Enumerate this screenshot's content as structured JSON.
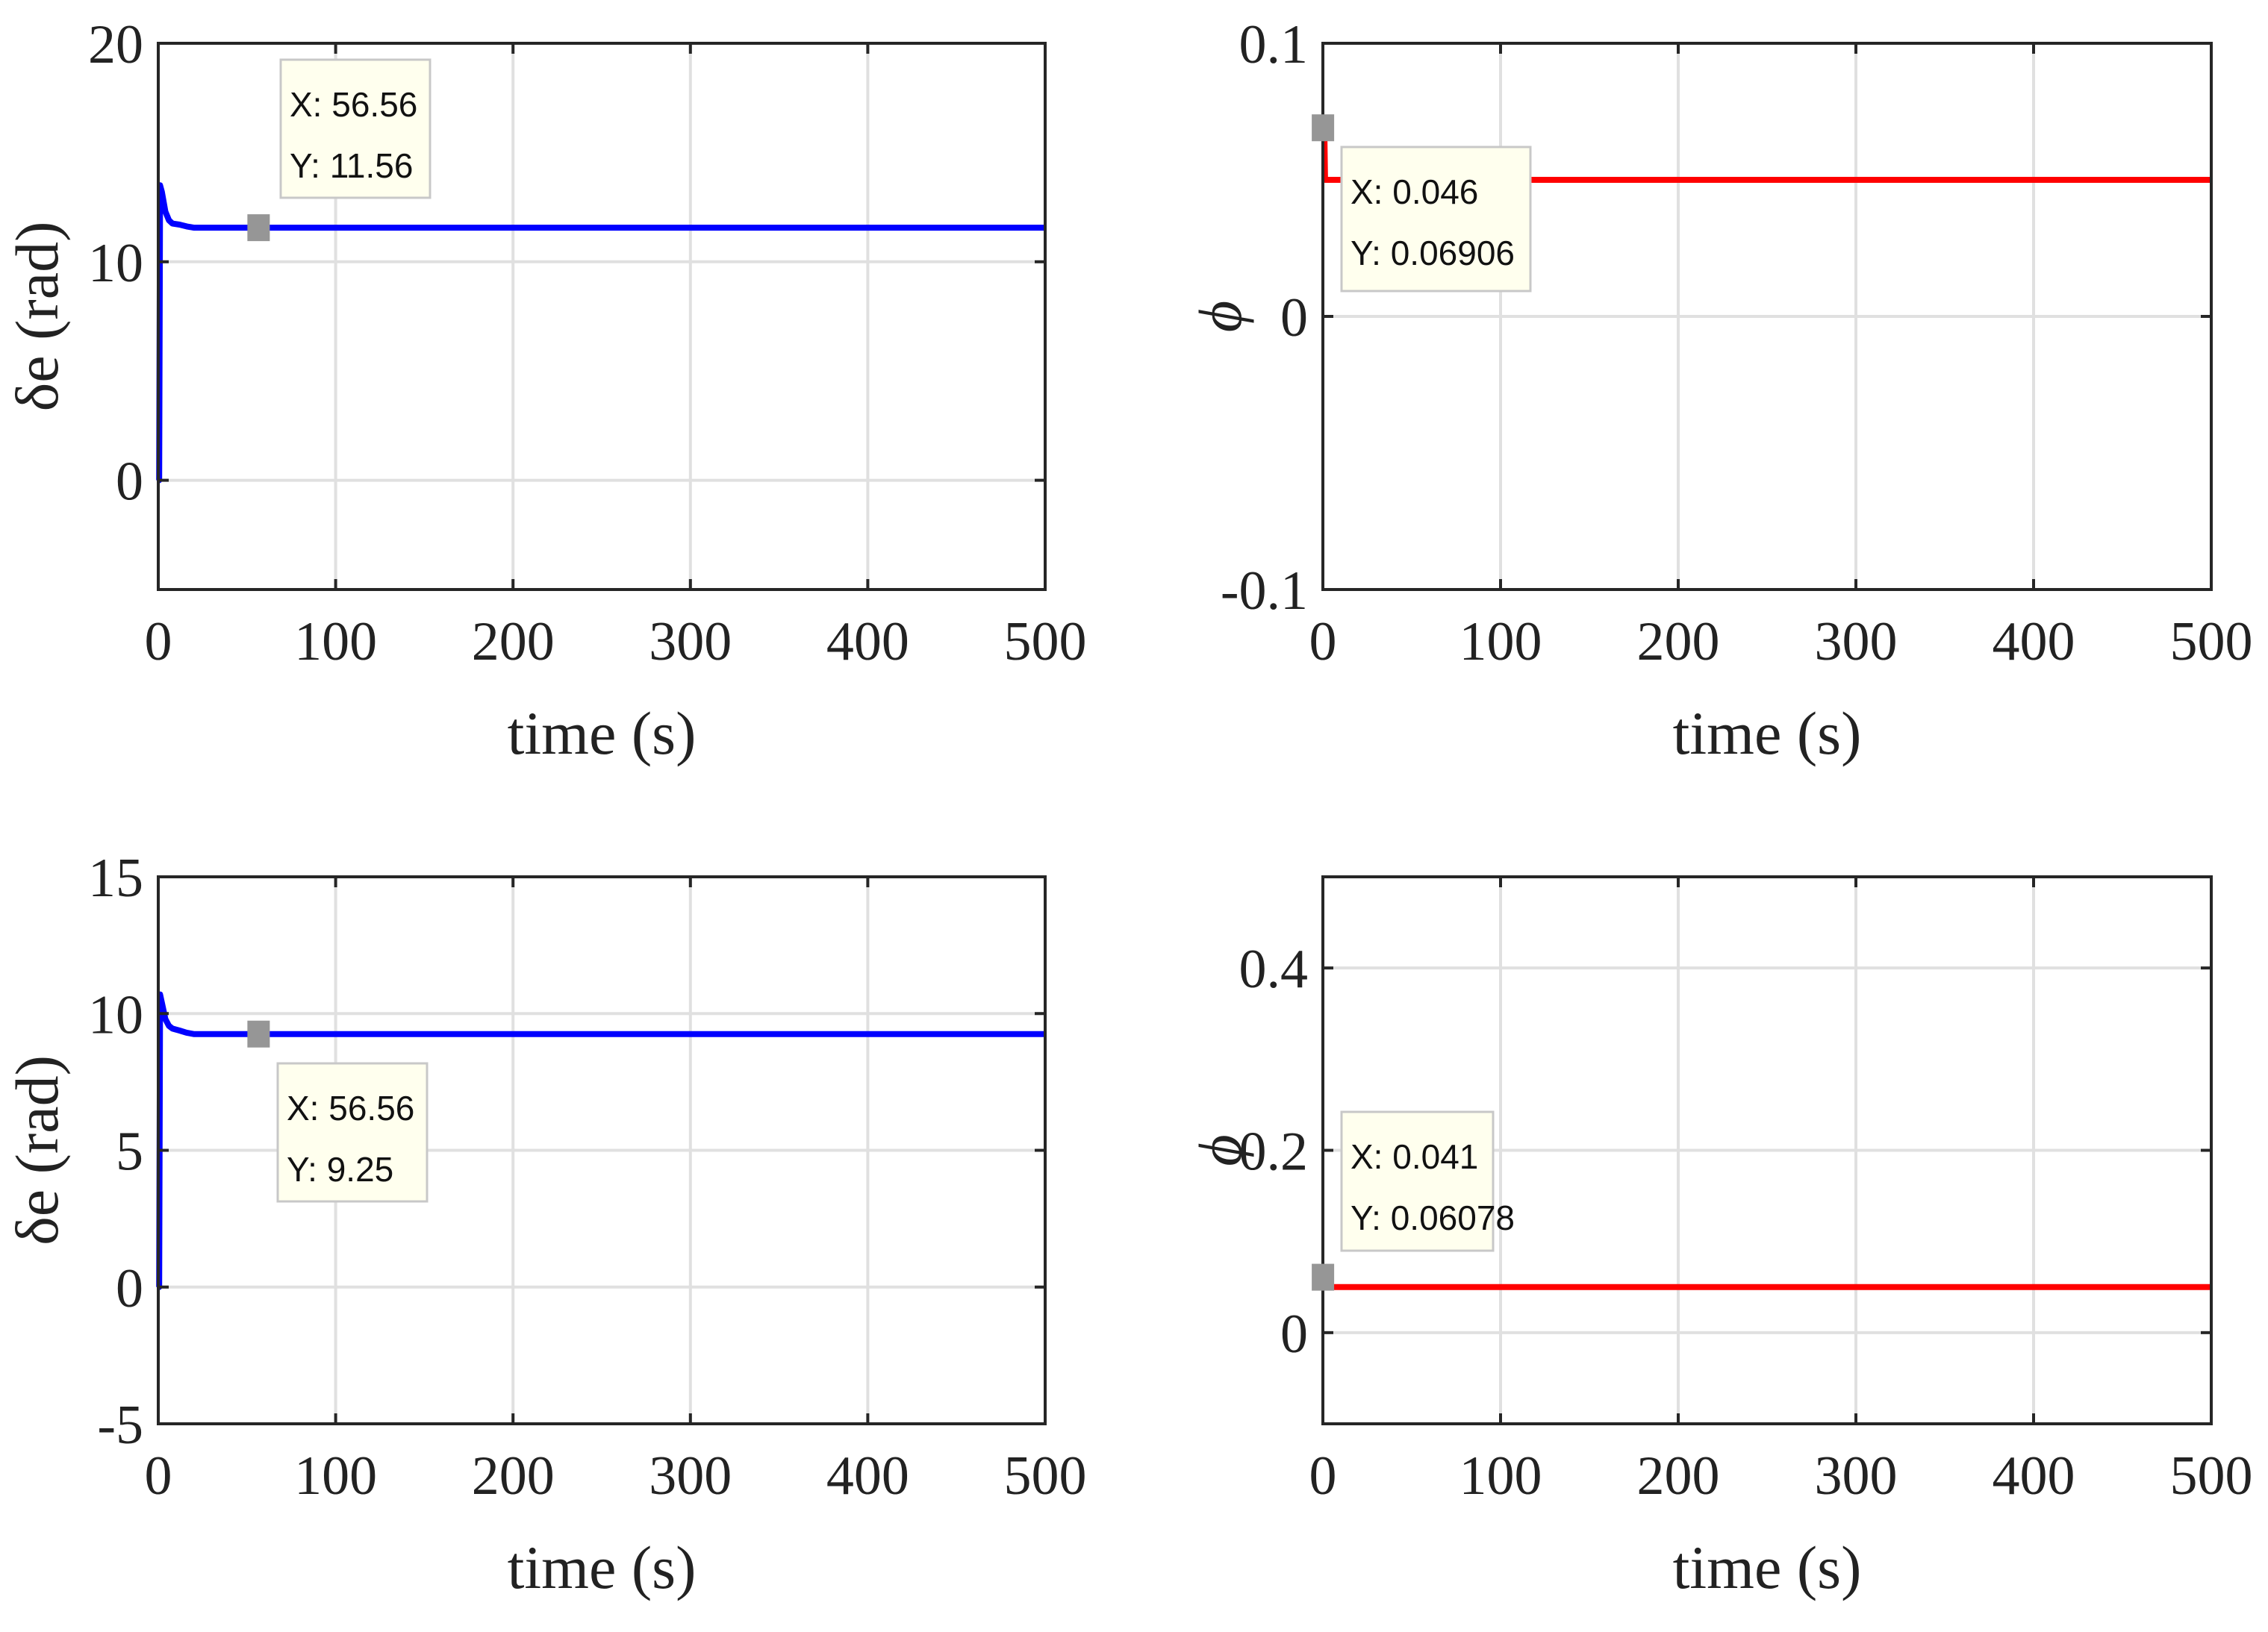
{
  "chart_data": [
    {
      "type": "line",
      "xlabel": "time (s)",
      "ylabel": "δe (rad)",
      "xlim": [
        0,
        500
      ],
      "ylim": [
        -5,
        20
      ],
      "xticks": [
        0,
        100,
        200,
        300,
        400,
        500
      ],
      "yticks": [
        0,
        10,
        20
      ],
      "grid": true,
      "series": [
        {
          "name": "δe",
          "color": "#0000ff",
          "points": [
            [
              0,
              0
            ],
            [
              0.5,
              0
            ],
            [
              1,
              13.5
            ],
            [
              2,
              13.2
            ],
            [
              4,
              12.3
            ],
            [
              6,
              11.9
            ],
            [
              8,
              11.75
            ],
            [
              12,
              11.7
            ],
            [
              16,
              11.62
            ],
            [
              20,
              11.56
            ],
            [
              30,
              11.56
            ],
            [
              500,
              11.56
            ]
          ]
        }
      ],
      "datatip": {
        "x": 56.56,
        "y": 11.56,
        "x_text": "X: 56.56",
        "y_text": "Y: 11.56"
      }
    },
    {
      "type": "line",
      "xlabel": "time (s)",
      "ylabel": "ϕ",
      "xlim": [
        0,
        500
      ],
      "ylim": [
        -0.1,
        0.1
      ],
      "xticks": [
        0,
        100,
        200,
        300,
        400,
        500
      ],
      "yticks": [
        -0.1,
        0,
        0.1
      ],
      "grid": true,
      "series": [
        {
          "name": "ϕ",
          "color": "#ff0000",
          "points": [
            [
              0,
              0.069
            ],
            [
              0.8,
              0.069
            ],
            [
              1.2,
              0.05
            ],
            [
              500,
              0.05
            ]
          ]
        }
      ],
      "datatip": {
        "x": 0.046,
        "y": 0.06906,
        "x_text": "X: 0.046",
        "y_text": "Y: 0.06906"
      }
    },
    {
      "type": "line",
      "xlabel": "time (s)",
      "ylabel": "δe (rad)",
      "xlim": [
        0,
        500
      ],
      "ylim": [
        -5,
        15
      ],
      "xticks": [
        0,
        100,
        200,
        300,
        400,
        500
      ],
      "yticks": [
        -5,
        0,
        5,
        10,
        15
      ],
      "grid": true,
      "series": [
        {
          "name": "δe",
          "color": "#0000ff",
          "points": [
            [
              0,
              0
            ],
            [
              0.5,
              0
            ],
            [
              1,
              10.7
            ],
            [
              2,
              10.4
            ],
            [
              4,
              9.8
            ],
            [
              6,
              9.55
            ],
            [
              8,
              9.45
            ],
            [
              12,
              9.38
            ],
            [
              16,
              9.3
            ],
            [
              20,
              9.25
            ],
            [
              30,
              9.25
            ],
            [
              500,
              9.25
            ]
          ]
        }
      ],
      "datatip": {
        "x": 56.56,
        "y": 9.25,
        "x_text": "X: 56.56",
        "y_text": "Y: 9.25"
      }
    },
    {
      "type": "line",
      "xlabel": "time (s)",
      "ylabel": "ϕ",
      "xlim": [
        0,
        500
      ],
      "ylim": [
        -0.1,
        0.5
      ],
      "xticks": [
        0,
        100,
        200,
        300,
        400,
        500
      ],
      "yticks": [
        0,
        0.2,
        0.4
      ],
      "grid": true,
      "series": [
        {
          "name": "ϕ",
          "color": "#ff0000",
          "points": [
            [
              0,
              0.06
            ],
            [
              1,
              0.05
            ],
            [
              500,
              0.05
            ]
          ]
        }
      ],
      "datatip": {
        "x": 0.041,
        "y": 0.06078,
        "x_text": "X: 0.041",
        "y_text": "Y: 0.06078"
      }
    }
  ]
}
